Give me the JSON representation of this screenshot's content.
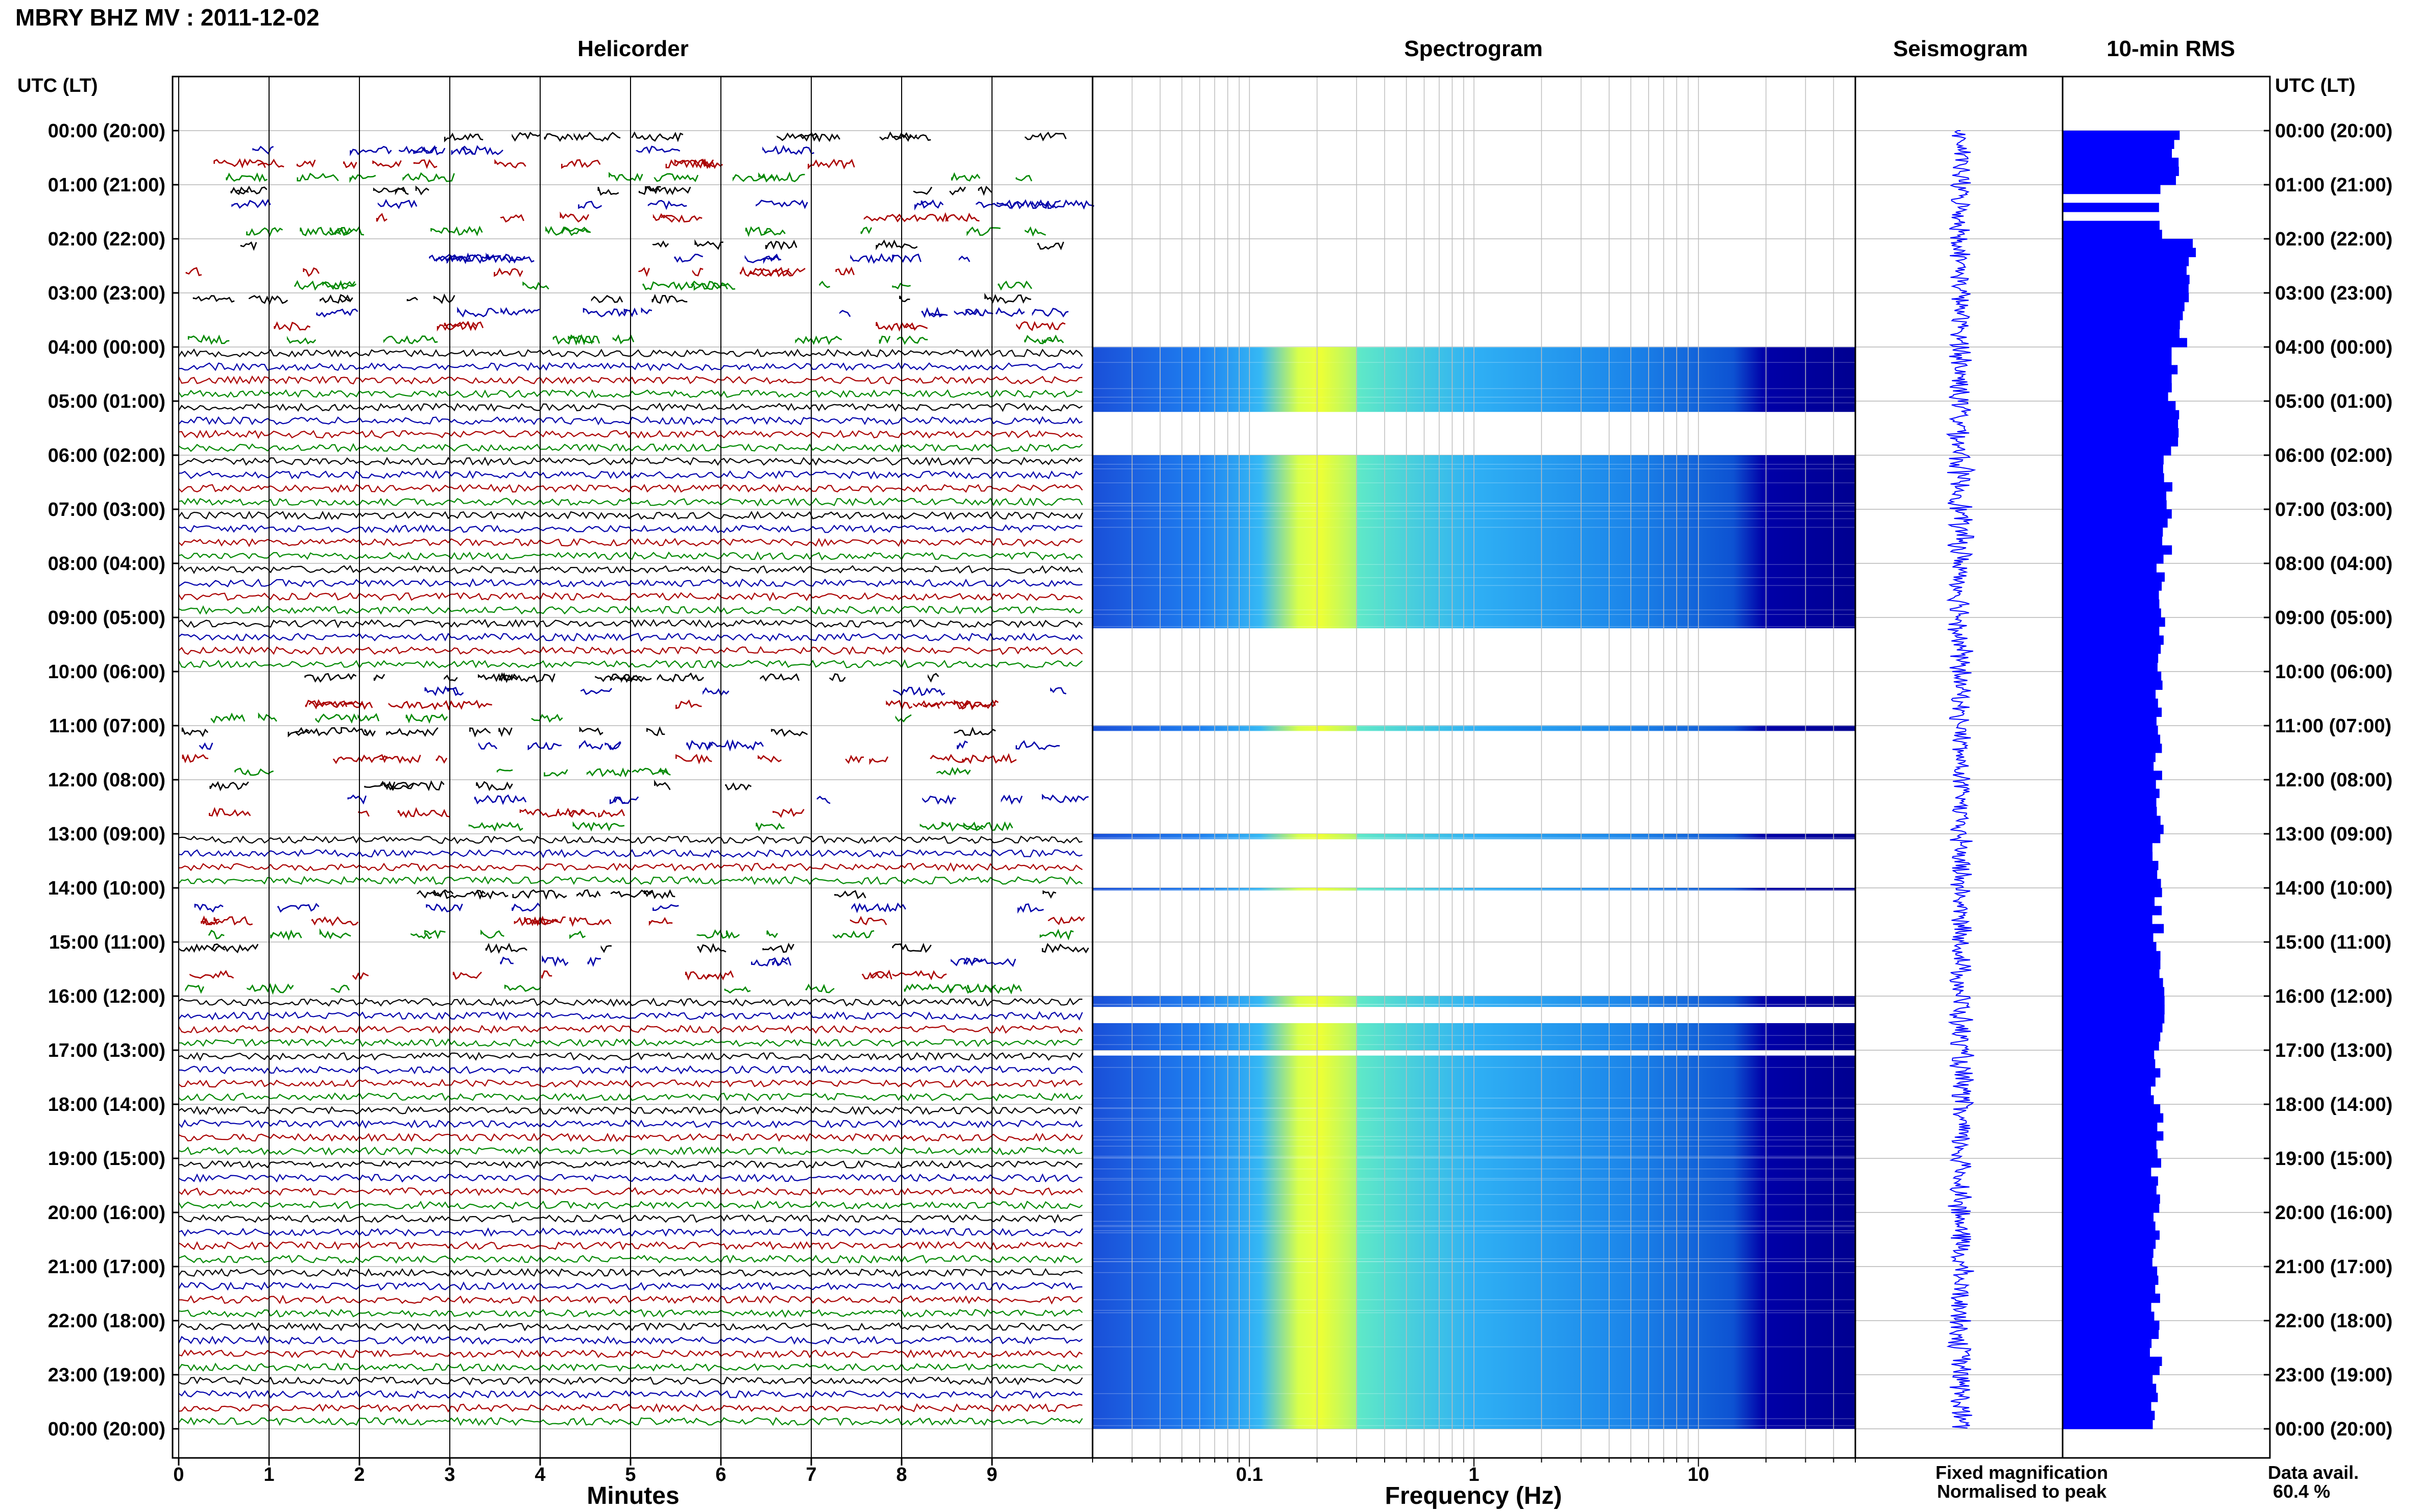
{
  "header": {
    "station_title": "MBRY BHZ MV : 2011-12-02",
    "time_col_label": "UTC (LT)"
  },
  "panels": {
    "helicorder": "Helicorder",
    "spectrogram": "Spectrogram",
    "seismogram": "Seismogram",
    "rms": "10-min RMS"
  },
  "footer": {
    "minutes_label": "Minutes",
    "frequency_label": "Frequency (Hz)",
    "legend_fixed": "Fixed magnification",
    "legend_normalised": "Normalised to peak",
    "data_avail_label": "Data avail.",
    "data_avail_value": "60.4 %"
  },
  "colors": {
    "fixed": "#0000ff",
    "normalised": "#ff0000",
    "trace_colors": [
      "#000000",
      "#0000aa",
      "#aa0000",
      "#008800"
    ],
    "spec_low": "#0000aa",
    "spec_mid": "#00c8ff",
    "spec_high": "#e8ff30"
  },
  "chart_data": [
    {
      "type": "helicorder",
      "title": "Helicorder",
      "xlabel": "Minutes",
      "x_ticks": [
        "0",
        "1",
        "2",
        "3",
        "4",
        "5",
        "6",
        "7",
        "8",
        "9"
      ],
      "xlim": [
        0,
        10
      ],
      "time_labels": [
        "00:00 (20:00)",
        "01:00 (21:00)",
        "02:00 (22:00)",
        "03:00 (23:00)",
        "04:00 (00:00)",
        "05:00 (01:00)",
        "06:00 (02:00)",
        "07:00 (03:00)",
        "08:00 (04:00)",
        "09:00 (05:00)",
        "10:00 (06:00)",
        "11:00 (07:00)",
        "12:00 (08:00)",
        "13:00 (09:00)",
        "14:00 (10:00)",
        "15:00 (11:00)",
        "16:00 (12:00)",
        "17:00 (13:00)",
        "18:00 (14:00)",
        "19:00 (15:00)",
        "20:00 (16:00)",
        "21:00 (17:00)",
        "22:00 (18:00)",
        "23:00 (19:00)",
        "00:00 (20:00)"
      ],
      "continuous_hours": [
        4,
        5,
        6,
        7,
        8,
        9,
        13,
        16,
        17,
        18,
        19,
        20,
        21,
        22,
        23
      ]
    },
    {
      "type": "heatmap",
      "title": "Spectrogram",
      "xlabel": "Frequency (Hz)",
      "x_scale": "log",
      "xlim": [
        0.02,
        50
      ],
      "x_ticks": [
        "0.1",
        "1",
        "10"
      ],
      "peak_band_hz": [
        0.2,
        0.3
      ],
      "active_hour_ranges": [
        [
          4.0,
          5.2
        ],
        [
          6.0,
          9.2
        ],
        [
          11.0,
          11.1
        ],
        [
          13.0,
          13.1
        ],
        [
          14.0,
          14.05
        ],
        [
          16.0,
          16.2
        ],
        [
          16.5,
          17.0
        ],
        [
          17.1,
          24.0
        ]
      ]
    },
    {
      "type": "line",
      "title": "Seismogram",
      "xlim": [
        -1,
        1
      ],
      "hours": [
        0,
        24
      ]
    },
    {
      "type": "bar",
      "title": "10-min RMS",
      "orientation": "horizontal",
      "hours": [
        0,
        24
      ],
      "gap_hours": [
        [
          1.15,
          1.25
        ],
        [
          1.45,
          1.55
        ]
      ],
      "values_hourly_mean": [
        0.54,
        0.49,
        0.62,
        0.58,
        0.53,
        0.55,
        0.51,
        0.5,
        0.48,
        0.47,
        0.47,
        0.46,
        0.47,
        0.46,
        0.46,
        0.47,
        0.49,
        0.45,
        0.46,
        0.45,
        0.45,
        0.45,
        0.45,
        0.44
      ],
      "xlim": [
        0,
        1
      ]
    }
  ]
}
